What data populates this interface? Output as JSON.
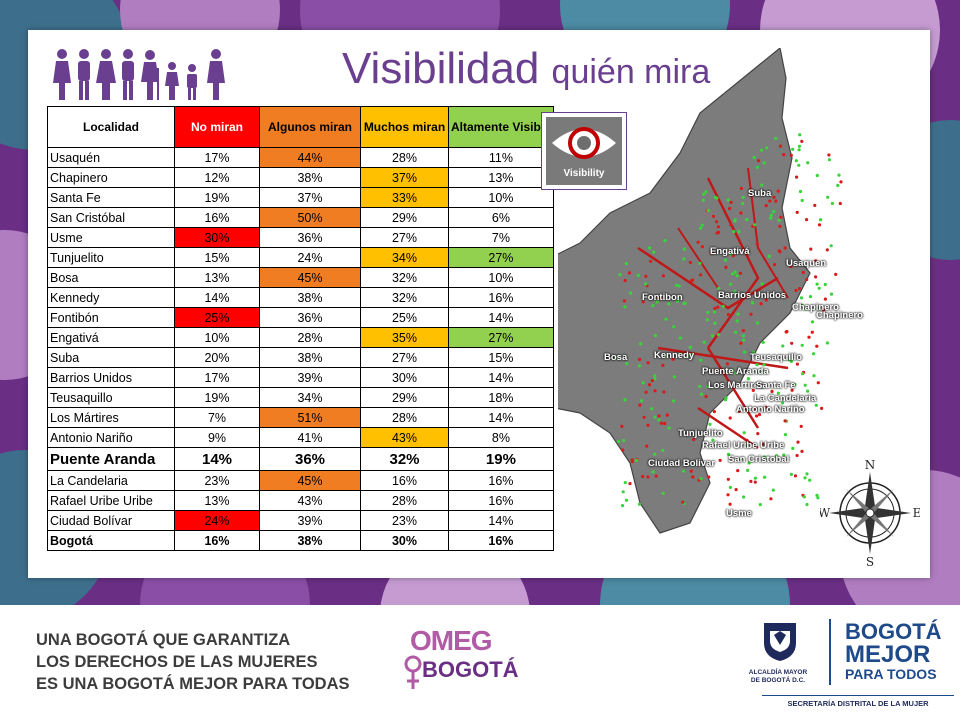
{
  "title": {
    "main": "Visibilidad",
    "sub": "quién mira"
  },
  "table": {
    "headers": [
      "Localidad",
      "No miran",
      "Algunos miran",
      "Muchos miran",
      "Altamente Visible"
    ],
    "header_colors": [
      "#ffffff",
      "#ff0000",
      "#f07d22",
      "#ffc000",
      "#92d050"
    ],
    "rows": [
      {
        "cells": [
          "Usaquén",
          "17%",
          "44%",
          "28%",
          "11%"
        ],
        "hl": [
          0,
          0,
          2,
          0,
          0
        ]
      },
      {
        "cells": [
          "Chapinero",
          "12%",
          "38%",
          "37%",
          "13%"
        ],
        "hl": [
          0,
          0,
          0,
          3,
          0
        ]
      },
      {
        "cells": [
          "Santa Fe",
          "19%",
          "37%",
          "33%",
          "10%"
        ],
        "hl": [
          0,
          0,
          0,
          3,
          0
        ]
      },
      {
        "cells": [
          "San Cristóbal",
          "16%",
          "50%",
          "29%",
          "6%"
        ],
        "hl": [
          0,
          0,
          2,
          0,
          0
        ]
      },
      {
        "cells": [
          "Usme",
          "30%",
          "36%",
          "27%",
          "7%"
        ],
        "hl": [
          0,
          1,
          0,
          0,
          0
        ]
      },
      {
        "cells": [
          "Tunjuelito",
          "15%",
          "24%",
          "34%",
          "27%"
        ],
        "hl": [
          0,
          0,
          0,
          3,
          4
        ]
      },
      {
        "cells": [
          "Bosa",
          "13%",
          "45%",
          "32%",
          "10%"
        ],
        "hl": [
          0,
          0,
          2,
          0,
          0
        ]
      },
      {
        "cells": [
          "Kennedy",
          "14%",
          "38%",
          "32%",
          "16%"
        ],
        "hl": [
          0,
          0,
          0,
          0,
          0
        ]
      },
      {
        "cells": [
          "Fontibón",
          "25%",
          "36%",
          "25%",
          "14%"
        ],
        "hl": [
          0,
          1,
          0,
          0,
          0
        ]
      },
      {
        "cells": [
          "Engativá",
          "10%",
          "28%",
          "35%",
          "27%"
        ],
        "hl": [
          0,
          0,
          0,
          3,
          4
        ]
      },
      {
        "cells": [
          "Suba",
          "20%",
          "38%",
          "27%",
          "15%"
        ],
        "hl": [
          0,
          0,
          0,
          0,
          0
        ]
      },
      {
        "cells": [
          "Barrios Unidos",
          "17%",
          "39%",
          "30%",
          "14%"
        ],
        "hl": [
          0,
          0,
          0,
          0,
          0
        ]
      },
      {
        "cells": [
          "Teusaquillo",
          "19%",
          "34%",
          "29%",
          "18%"
        ],
        "hl": [
          0,
          0,
          0,
          0,
          0
        ]
      },
      {
        "cells": [
          "Los Mártires",
          "7%",
          "51%",
          "28%",
          "14%"
        ],
        "hl": [
          0,
          0,
          2,
          0,
          0
        ]
      },
      {
        "cells": [
          "Antonio Nariño",
          "9%",
          "41%",
          "43%",
          "8%"
        ],
        "hl": [
          0,
          0,
          0,
          3,
          0
        ]
      },
      {
        "cells": [
          "Puente Aranda",
          "14%",
          "36%",
          "32%",
          "19%"
        ],
        "hl": [
          0,
          0,
          0,
          0,
          0
        ],
        "big": true
      },
      {
        "cells": [
          "La Candelaria",
          "23%",
          "45%",
          "16%",
          "16%"
        ],
        "hl": [
          0,
          0,
          2,
          0,
          0
        ]
      },
      {
        "cells": [
          "Rafael Uribe Uribe",
          "13%",
          "43%",
          "28%",
          "16%"
        ],
        "hl": [
          0,
          0,
          0,
          0,
          0
        ]
      },
      {
        "cells": [
          "Ciudad Bolívar",
          "24%",
          "39%",
          "23%",
          "14%"
        ],
        "hl": [
          0,
          1,
          0,
          0,
          0
        ]
      },
      {
        "cells": [
          "Bogotá",
          "16%",
          "38%",
          "30%",
          "16%"
        ],
        "hl": [
          0,
          0,
          0,
          0,
          0
        ],
        "total": true
      }
    ]
  },
  "badge_label": "Visibility",
  "map_labels": [
    "Suba",
    "Engativá",
    "Usaquen",
    "Fontibon",
    "Barrios Unidos",
    "Chapinero",
    "Chapinero",
    "Teusaquillo",
    "Bosa",
    "Kennedy",
    "Puente Aranda",
    "Los Martires",
    "Santa Fe",
    "La Candelaria",
    "Antonio Nariño",
    "Tunjuelito",
    "Rafael Uribe Uribe",
    "Ciudad Bolivar",
    "San Cristobal",
    "Usme"
  ],
  "compass_labels": {
    "n": "N",
    "s": "S",
    "e": "E",
    "w": "W"
  },
  "footer": {
    "slogan": [
      "UNA BOGOTÁ QUE GARANTIZA",
      "LOS DERECHOS DE LAS MUJERES",
      "ES UNA BOGOTÁ MEJOR PARA TODAS"
    ],
    "omeg_line1": "OMEG",
    "omeg_line2": "BOGOTÁ",
    "alcaldia": [
      "ALCALDÍA MAYOR",
      "DE BOGOTÁ D.C."
    ],
    "bogota_mejor": [
      "BOGOTÁ",
      "MEJOR",
      "PARA TODOS"
    ],
    "secretaria": "SECRETARÍA DISTRITAL DE LA MUJER"
  },
  "colors": {
    "purple_dark": "#6a2f84",
    "purple_title": "#6a3f8f",
    "red": "#ff0000",
    "orange": "#f07d22",
    "yellow": "#ffc000",
    "green": "#92d050"
  }
}
